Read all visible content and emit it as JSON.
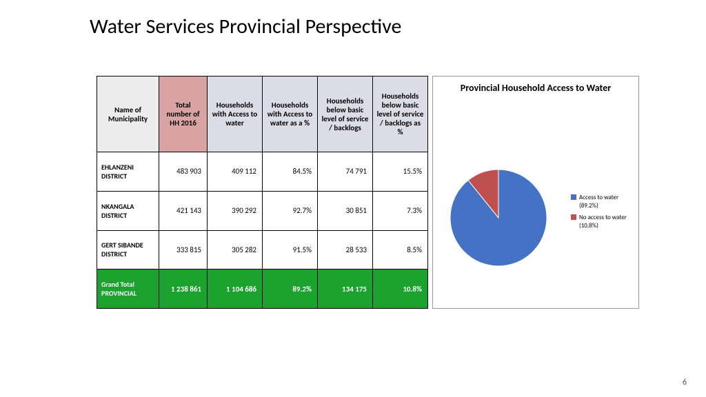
{
  "title": "Water Services Provincial Perspective",
  "page_number": "6",
  "table": {
    "columns": [
      "Name of Municipality",
      "Total number of HH 2016",
      "Households with Access to water",
      "Households with Access to water as a %",
      "Households below basic level of service / backlogs",
      "Households below basic level of service / backlogs as %"
    ],
    "header_bg": [
      "#ececec",
      "#d9a3a3",
      "#dcdce6",
      "#dcdce6",
      "#dcdce6",
      "#dcdce6"
    ],
    "rows": [
      [
        "EHLANZENI DISTRICT",
        "483 903",
        "409 112",
        "84.5%",
        "74 791",
        "15.5%"
      ],
      [
        "NKANGALA DISTRICT",
        "421 143",
        "390 292",
        "92.7%",
        "30 851",
        "7.3%"
      ],
      [
        "GERT SIBANDE DISTRICT",
        "333 815",
        "305 282",
        "91.5%",
        "28 533",
        "8.5%"
      ]
    ],
    "total_row": [
      "Grand Total PROVINCIAL",
      "1 238 861",
      "1 104 686",
      "89.2%",
      "134 175",
      "10.8%"
    ],
    "total_row_bg": "#1aa12e"
  },
  "chart": {
    "type": "pie",
    "title": "Provincial Household Access to Water",
    "slices": [
      {
        "label": "Access to water (89.2%)",
        "value": 89.2,
        "color": "#4472c4"
      },
      {
        "label": "No access to water (10,8%)",
        "value": 10.8,
        "color": "#c0504d"
      }
    ],
    "title_fontsize": 14,
    "legend_fontsize": 9,
    "pie_radius": 70,
    "background_color": "#ffffff",
    "start_angle_deg": -90
  }
}
